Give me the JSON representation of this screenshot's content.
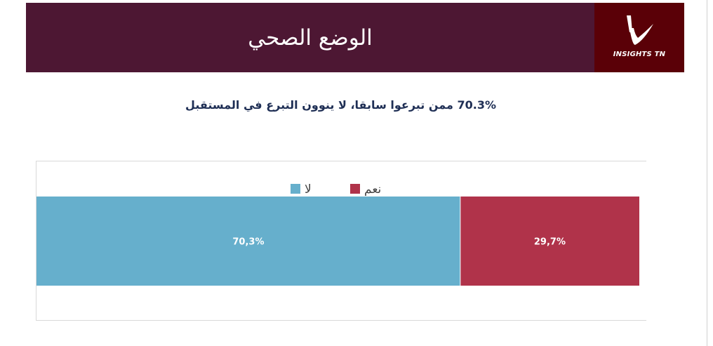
{
  "header": {
    "title": "الوضع الصحي",
    "logo_text": "INSIGHTS TN",
    "colors": {
      "banner": "#4d1733",
      "logo_bg": "#5a0007"
    }
  },
  "subtitle": "70.3% ممن تبرعوا سابقا، لا ينوون التبرع في المستقبل",
  "chart_data": {
    "type": "bar",
    "orientation": "horizontal-stacked-100",
    "categories": [
      ""
    ],
    "series": [
      {
        "name": "لا",
        "values": [
          70.3
        ],
        "label": "70,3%",
        "color": "#66afcc"
      },
      {
        "name": "نعم",
        "values": [
          29.7
        ],
        "label": "29,7%",
        "color": "#b0334a"
      }
    ],
    "xlim": [
      0,
      100
    ],
    "legend_position": "top-center",
    "grid": false
  }
}
